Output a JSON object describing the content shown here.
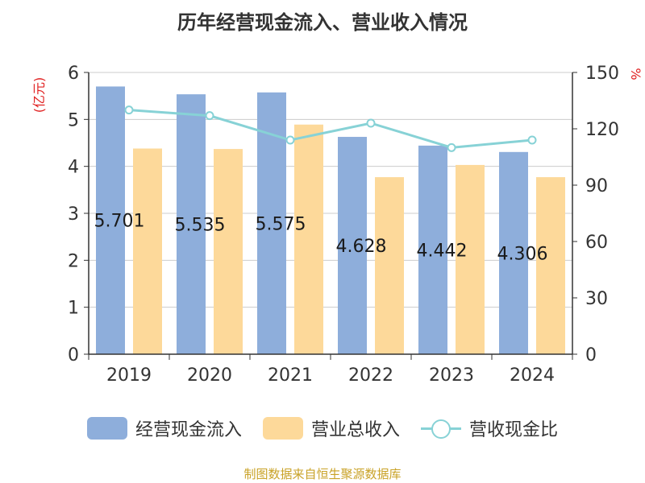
{
  "chart_data": {
    "type": "bar+line",
    "title": "历年经营现金流入、营业收入情况",
    "categories": [
      "2019",
      "2020",
      "2021",
      "2022",
      "2023",
      "2024"
    ],
    "series": [
      {
        "name": "经营现金流入",
        "type": "bar",
        "axis": "left",
        "color": "#8eaedb",
        "values": [
          5.701,
          5.535,
          5.575,
          4.628,
          4.442,
          4.306
        ],
        "labels": [
          "5.701",
          "5.535",
          "5.575",
          "4.628",
          "4.442",
          "4.306"
        ]
      },
      {
        "name": "营业总收入",
        "type": "bar",
        "axis": "left",
        "color": "#fdd99a",
        "values": [
          4.38,
          4.37,
          4.89,
          3.77,
          4.03,
          3.77
        ]
      },
      {
        "name": "营收现金比",
        "type": "line",
        "axis": "right",
        "color": "#87d2d6",
        "values": [
          130,
          127,
          114,
          123,
          110,
          114
        ]
      }
    ],
    "ylabel_left": "(亿元)",
    "ylabel_right": "%",
    "y_left": {
      "min": 0,
      "max": 6,
      "ticks": [
        "0",
        "1",
        "2",
        "3",
        "4",
        "5",
        "6"
      ]
    },
    "y_right": {
      "min": 0,
      "max": 150,
      "ticks": [
        "0",
        "30",
        "60",
        "90",
        "120",
        "150"
      ]
    },
    "grid": true,
    "legend_position": "bottom",
    "source": "制图数据来自恒生聚源数据库"
  }
}
